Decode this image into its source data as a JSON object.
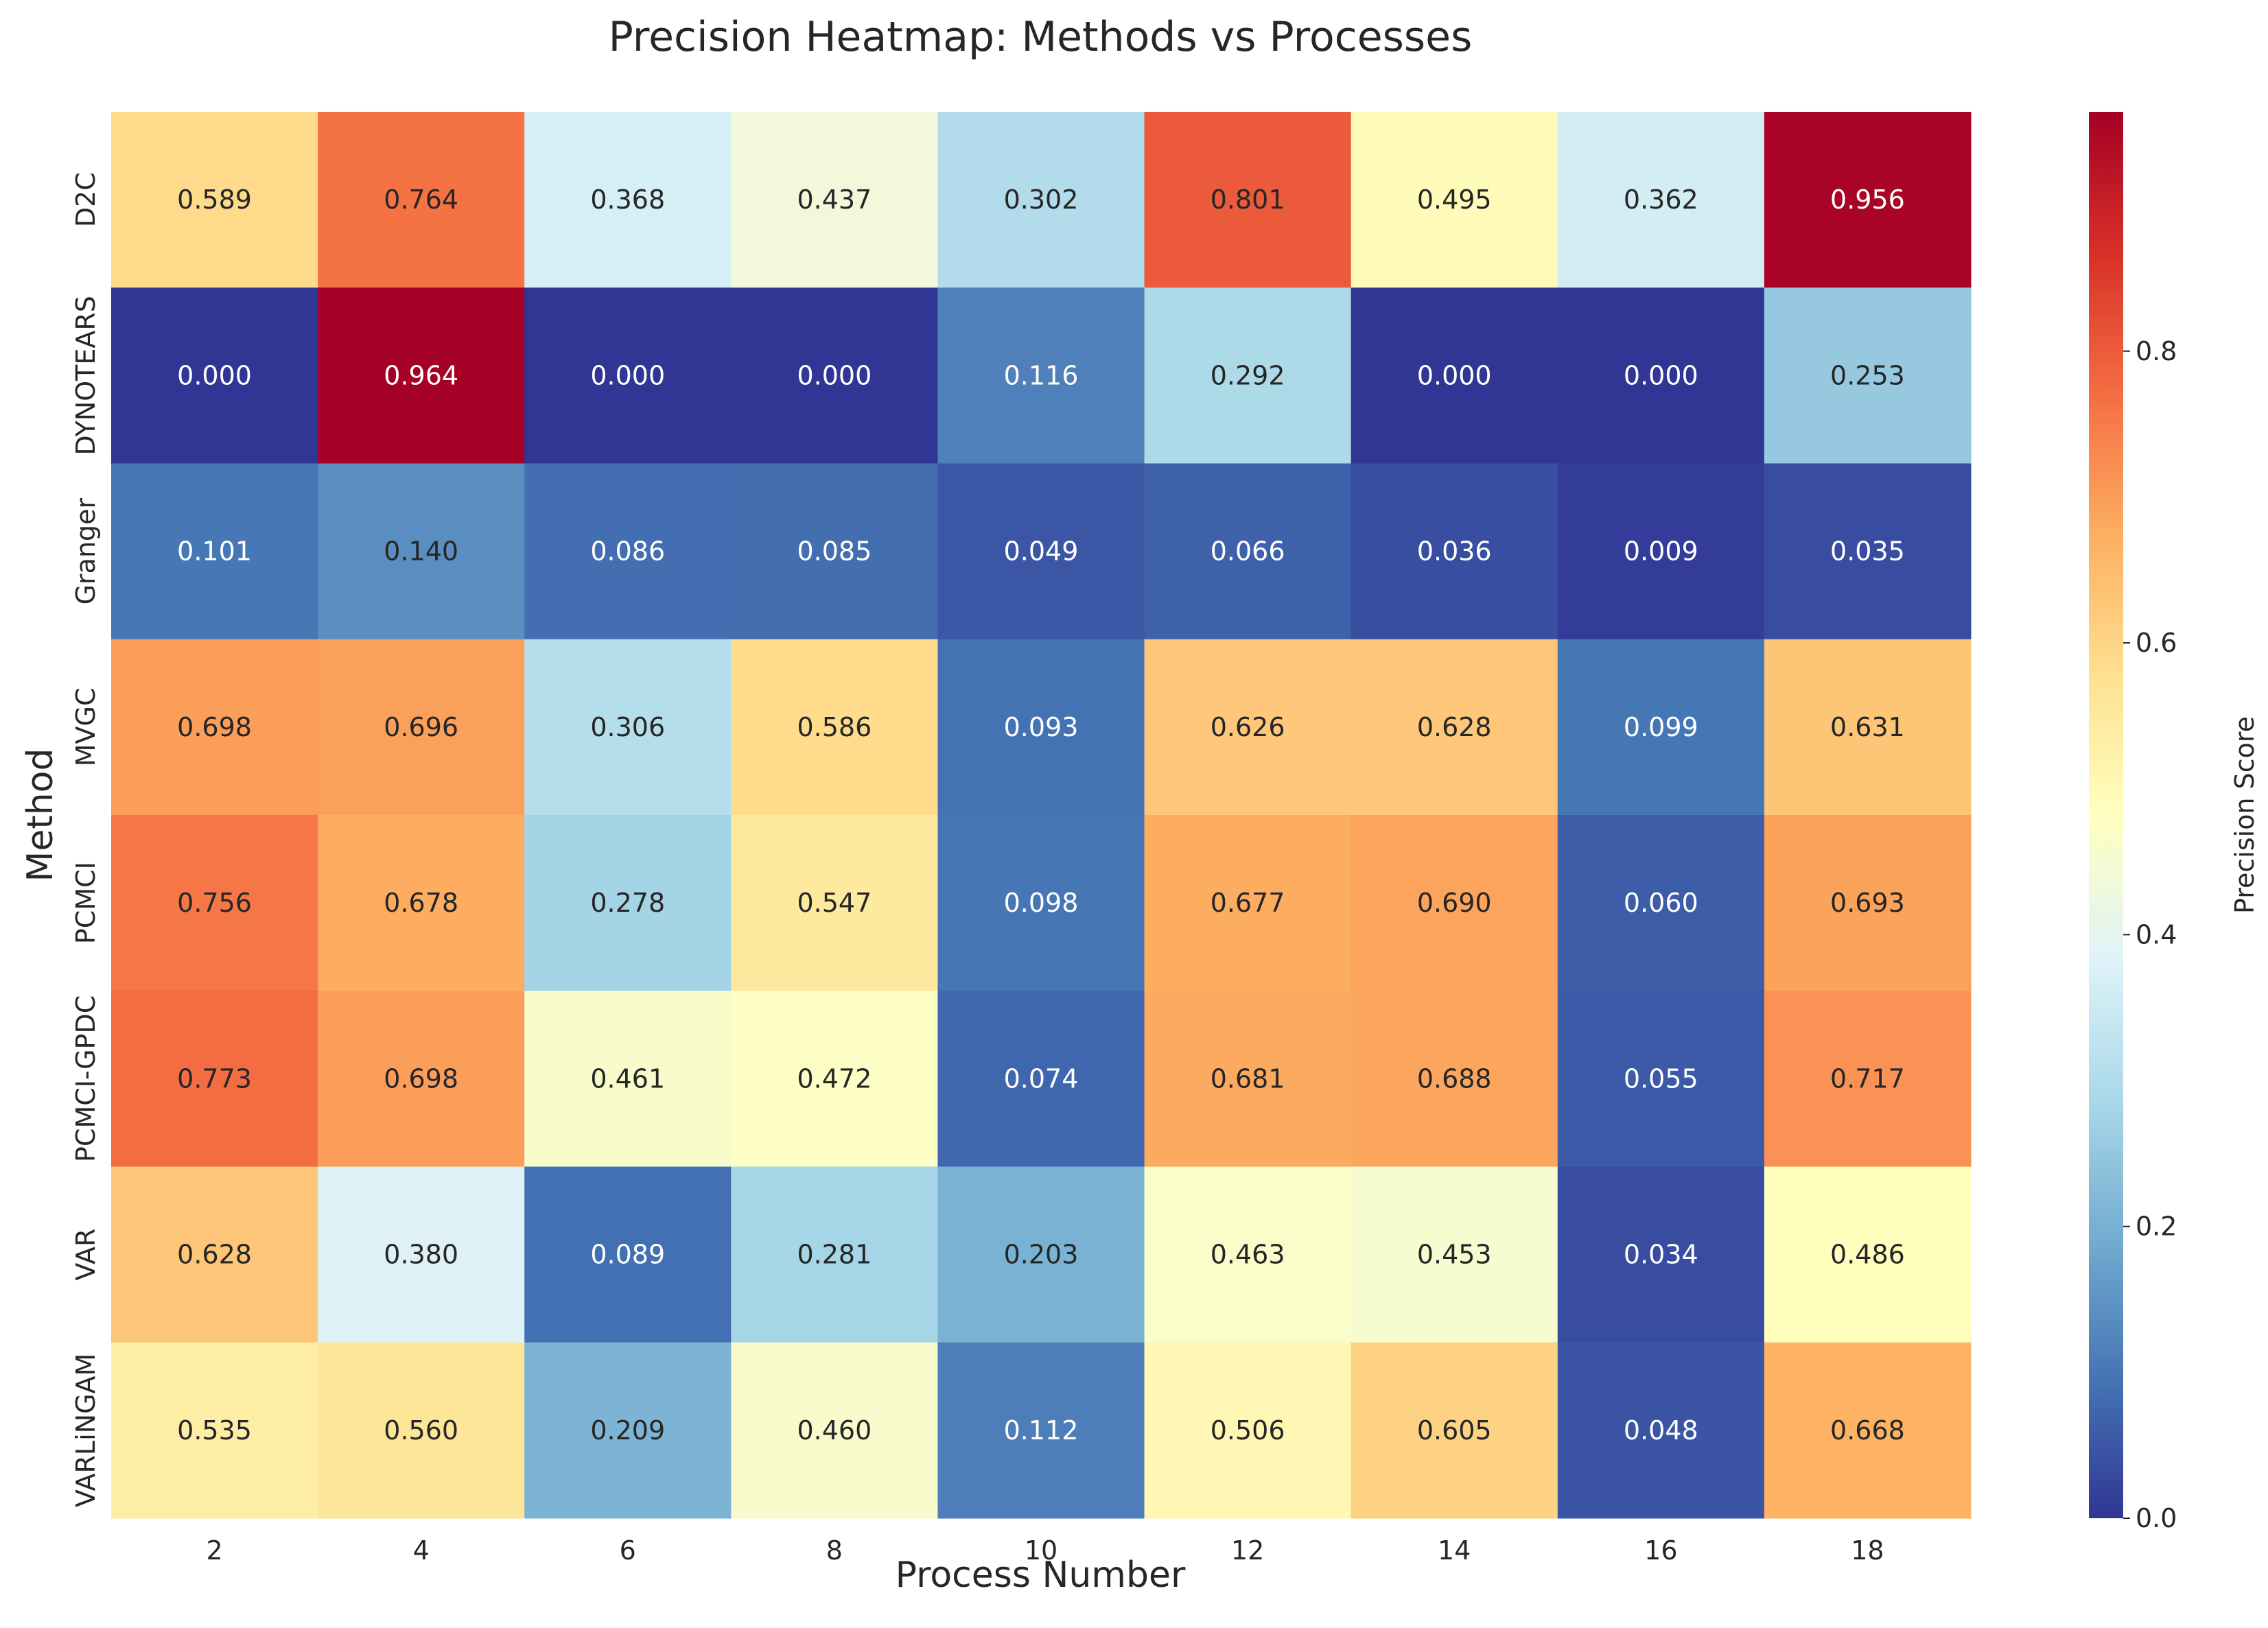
{
  "chart_data": {
    "type": "heatmap",
    "title": "Precision Heatmap: Methods vs Processes",
    "xlabel": "Process Number",
    "ylabel": "Method",
    "colorbar_label": "Precision Score",
    "colormap": "RdYlBu_r",
    "colorbar_range": [
      0.0,
      0.964
    ],
    "colorbar_ticks": [
      "0.0",
      "0.2",
      "0.4",
      "0.6",
      "0.8"
    ],
    "x": [
      "2",
      "4",
      "6",
      "8",
      "10",
      "12",
      "14",
      "16",
      "18"
    ],
    "y": [
      "D2C",
      "DYNOTEARS",
      "Granger",
      "MVGC",
      "PCMCI",
      "PCMCI-GPDC",
      "VAR",
      "VARLiNGAM"
    ],
    "values": [
      [
        0.589,
        0.764,
        0.368,
        0.437,
        0.302,
        0.801,
        0.495,
        0.362,
        0.956
      ],
      [
        0.0,
        0.964,
        0.0,
        0.0,
        0.116,
        0.292,
        0.0,
        0.0,
        0.253
      ],
      [
        0.101,
        0.14,
        0.086,
        0.085,
        0.049,
        0.066,
        0.036,
        0.009,
        0.035
      ],
      [
        0.698,
        0.696,
        0.306,
        0.586,
        0.093,
        0.626,
        0.628,
        0.099,
        0.631
      ],
      [
        0.756,
        0.678,
        0.278,
        0.547,
        0.098,
        0.677,
        0.69,
        0.06,
        0.693
      ],
      [
        0.773,
        0.698,
        0.461,
        0.472,
        0.074,
        0.681,
        0.688,
        0.055,
        0.717
      ],
      [
        0.628,
        0.38,
        0.089,
        0.281,
        0.203,
        0.463,
        0.453,
        0.034,
        0.486
      ],
      [
        0.535,
        0.56,
        0.209,
        0.46,
        0.112,
        0.506,
        0.605,
        0.048,
        0.668
      ]
    ],
    "value_format": "3 decimals",
    "grid": false
  }
}
